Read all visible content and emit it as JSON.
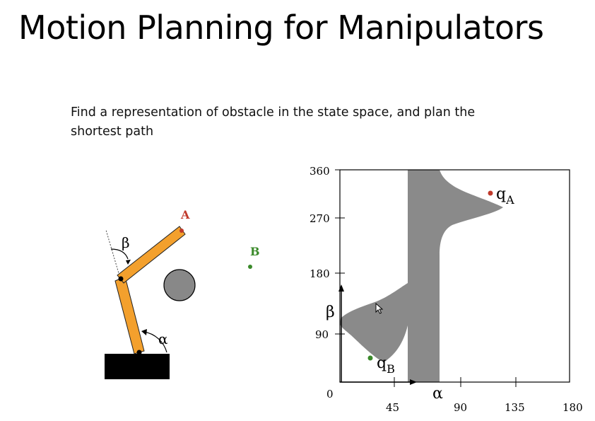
{
  "slide": {
    "title": "Motion Planning for Manipulators",
    "subtitle": "Find a representation of obstacle in the state space, and plan the shortest path"
  },
  "arm": {
    "point_a_label": "A",
    "point_b_label": "B",
    "alpha_label": "α",
    "beta_label": "β",
    "colors": {
      "link": "#f3a02d",
      "point_a": "#c0392b",
      "point_b": "#3a8a2a",
      "obstacle": "#888888",
      "base": "#000000"
    }
  },
  "cspace": {
    "y_ticks": [
      "360",
      "270",
      "180",
      "90"
    ],
    "x_ticks": [
      "45",
      "90",
      "135",
      "180"
    ],
    "origin_label": "0",
    "x_axis_label": "α",
    "y_axis_label": "β",
    "q_a_label": "q",
    "q_a_sub": "A",
    "q_b_label": "q",
    "q_b_sub": "B",
    "colors": {
      "obstacle_region": "#8a8a8a",
      "q_a": "#c0392b",
      "q_b": "#3a8a2a"
    }
  }
}
